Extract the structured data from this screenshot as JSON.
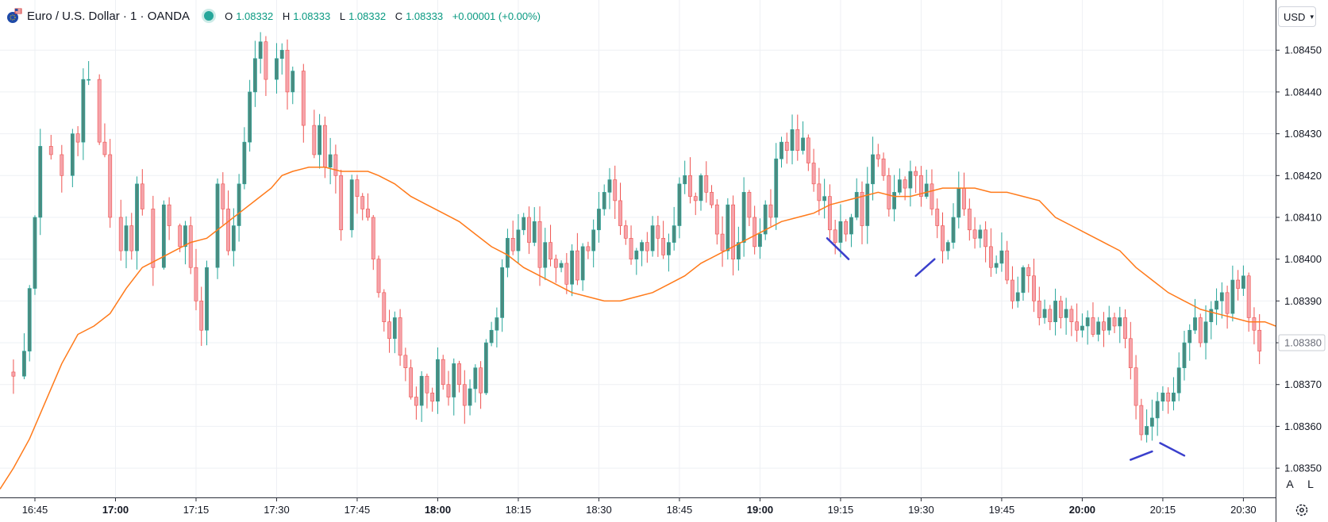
{
  "header": {
    "symbol": "Euro / U.S. Dollar · 1 · OANDA",
    "ohlc": {
      "o_label": "O",
      "o": "1.08332",
      "h_label": "H",
      "h": "1.08333",
      "l_label": "L",
      "l": "1.08332",
      "c_label": "C",
      "c": "1.08333",
      "change": "+0.00001 (+0.00%)"
    }
  },
  "controls": {
    "currency": "USD",
    "auto_label": "A",
    "log_label": "L"
  },
  "icons": {
    "logo": "euro-dollar-flags-icon",
    "status": "market-status-dot-icon",
    "settings": "gear-icon",
    "dropdown": "chevron-down-icon"
  },
  "colors": {
    "up": "#26a69a",
    "down": "#ef5350",
    "up_body": "#4a8b80",
    "down_body": "#f5a3aa",
    "ma": "#ff7a1a",
    "drawing": "#3a3fcc",
    "grid": "#eef0f4",
    "text": "#131722"
  },
  "chart_data": {
    "type": "candlestick",
    "interval": "1 minute",
    "ylim": [
      1.08343,
      1.08462
    ],
    "yticks": [
      "1.08350",
      "1.08360",
      "1.08370",
      "1.08380",
      "1.08390",
      "1.08400",
      "1.08410",
      "1.08420",
      "1.08430",
      "1.08440",
      "1.08450"
    ],
    "last_price_label": "1.08380",
    "xticks": [
      {
        "label": "16:45",
        "minute": 0,
        "bold": false
      },
      {
        "label": "17:00",
        "minute": 15,
        "bold": true
      },
      {
        "label": "17:15",
        "minute": 30,
        "bold": false
      },
      {
        "label": "17:30",
        "minute": 45,
        "bold": false
      },
      {
        "label": "17:45",
        "minute": 60,
        "bold": false
      },
      {
        "label": "18:00",
        "minute": 75,
        "bold": true
      },
      {
        "label": "18:15",
        "minute": 90,
        "bold": false
      },
      {
        "label": "18:30",
        "minute": 105,
        "bold": false
      },
      {
        "label": "18:45",
        "minute": 120,
        "bold": false
      },
      {
        "label": "19:00",
        "minute": 135,
        "bold": true
      },
      {
        "label": "19:15",
        "minute": 150,
        "bold": false
      },
      {
        "label": "19:30",
        "minute": 165,
        "bold": false
      },
      {
        "label": "19:45",
        "minute": 180,
        "bold": false
      },
      {
        "label": "20:00",
        "minute": 195,
        "bold": true
      },
      {
        "label": "20:15",
        "minute": 210,
        "bold": false
      },
      {
        "label": "20:30",
        "minute": 225,
        "bold": false
      }
    ],
    "xrange": [
      -6.5,
      231
    ],
    "anchors": [
      [
        -6,
        1.08373
      ],
      [
        -4,
        1.08372
      ],
      [
        -2,
        1.08378
      ],
      [
        -1,
        1.08393
      ],
      [
        0,
        1.0841
      ],
      [
        1,
        1.08427
      ],
      [
        3,
        1.08425
      ],
      [
        5,
        1.0842
      ],
      [
        7,
        1.0843
      ],
      [
        8,
        1.08428
      ],
      [
        9,
        1.08443
      ],
      [
        10,
        1.08443
      ],
      [
        12,
        1.08428
      ],
      [
        13,
        1.08425
      ],
      [
        14,
        1.0841
      ],
      [
        16,
        1.08402
      ],
      [
        17,
        1.08408
      ],
      [
        18,
        1.08402
      ],
      [
        19,
        1.08418
      ],
      [
        20,
        1.08412
      ],
      [
        22,
        1.08398
      ],
      [
        24,
        1.08413
      ],
      [
        25,
        1.08408
      ],
      [
        27,
        1.08403
      ],
      [
        28,
        1.08408
      ],
      [
        29,
        1.08398
      ],
      [
        30,
        1.0839
      ],
      [
        31,
        1.08383
      ],
      [
        32,
        1.08398
      ],
      [
        34,
        1.08418
      ],
      [
        35,
        1.08412
      ],
      [
        36,
        1.08402
      ],
      [
        37,
        1.08408
      ],
      [
        38,
        1.08418
      ],
      [
        39,
        1.08428
      ],
      [
        40,
        1.0844
      ],
      [
        41,
        1.08448
      ],
      [
        42,
        1.08452
      ],
      [
        43,
        1.08443
      ],
      [
        45,
        1.08448
      ],
      [
        46,
        1.0845
      ],
      [
        47,
        1.0844
      ],
      [
        48,
        1.08445
      ],
      [
        50,
        1.08432
      ],
      [
        52,
        1.08425
      ],
      [
        53,
        1.08432
      ],
      [
        54,
        1.08422
      ],
      [
        55,
        1.08425
      ],
      [
        56,
        1.0842
      ],
      [
        57,
        1.08407
      ],
      [
        59,
        1.08419
      ],
      [
        60,
        1.08415
      ],
      [
        61,
        1.08412
      ],
      [
        62,
        1.0841
      ],
      [
        63,
        1.084
      ],
      [
        64,
        1.08392
      ],
      [
        65,
        1.08385
      ],
      [
        66,
        1.08381
      ],
      [
        67,
        1.08386
      ],
      [
        68,
        1.08377
      ],
      [
        69,
        1.08374
      ],
      [
        70,
        1.08367
      ],
      [
        71,
        1.08365
      ],
      [
        72,
        1.08372
      ],
      [
        73,
        1.08368
      ],
      [
        74,
        1.08366
      ],
      [
        75,
        1.08376
      ],
      [
        76,
        1.0837
      ],
      [
        77,
        1.08367
      ],
      [
        78,
        1.08375
      ],
      [
        79,
        1.0837
      ],
      [
        80,
        1.08365
      ],
      [
        81,
        1.08369
      ],
      [
        82,
        1.08374
      ],
      [
        83,
        1.08368
      ],
      [
        84,
        1.0838
      ],
      [
        85,
        1.08383
      ],
      [
        86,
        1.08386
      ],
      [
        87,
        1.08398
      ],
      [
        88,
        1.08405
      ],
      [
        89,
        1.08402
      ],
      [
        90,
        1.08407
      ],
      [
        91,
        1.0841
      ],
      [
        92,
        1.08404
      ],
      [
        93,
        1.08409
      ],
      [
        94,
        1.08398
      ],
      [
        95,
        1.08404
      ],
      [
        96,
        1.084
      ],
      [
        97,
        1.08398
      ],
      [
        98,
        1.08399
      ],
      [
        99,
        1.08394
      ],
      [
        100,
        1.08402
      ],
      [
        101,
        1.08395
      ],
      [
        102,
        1.08403
      ],
      [
        103,
        1.08402
      ],
      [
        104,
        1.08407
      ],
      [
        105,
        1.08412
      ],
      [
        106,
        1.08416
      ],
      [
        107,
        1.08419
      ],
      [
        108,
        1.08414
      ],
      [
        109,
        1.08408
      ],
      [
        110,
        1.08405
      ],
      [
        111,
        1.084
      ],
      [
        112,
        1.08402
      ],
      [
        113,
        1.08404
      ],
      [
        114,
        1.08402
      ],
      [
        115,
        1.08408
      ],
      [
        116,
        1.08405
      ],
      [
        117,
        1.08401
      ],
      [
        118,
        1.08404
      ],
      [
        119,
        1.08408
      ],
      [
        120,
        1.08418
      ],
      [
        121,
        1.0842
      ],
      [
        122,
        1.08415
      ],
      [
        123,
        1.08414
      ],
      [
        124,
        1.0842
      ],
      [
        125,
        1.08416
      ],
      [
        126,
        1.08413
      ],
      [
        127,
        1.08406
      ],
      [
        128,
        1.08402
      ],
      [
        129,
        1.08413
      ],
      [
        130,
        1.084
      ],
      [
        131,
        1.08404
      ],
      [
        132,
        1.08416
      ],
      [
        133,
        1.0841
      ],
      [
        134,
        1.08403
      ],
      [
        135,
        1.08406
      ],
      [
        136,
        1.08413
      ],
      [
        137,
        1.0841
      ],
      [
        138,
        1.08424
      ],
      [
        139,
        1.08428
      ],
      [
        140,
        1.08426
      ],
      [
        141,
        1.08431
      ],
      [
        142,
        1.08426
      ],
      [
        143,
        1.08429
      ],
      [
        144,
        1.08423
      ],
      [
        145,
        1.08418
      ],
      [
        146,
        1.08414
      ],
      [
        147,
        1.08415
      ],
      [
        148,
        1.08407
      ],
      [
        149,
        1.08404
      ],
      [
        150,
        1.08409
      ],
      [
        151,
        1.08406
      ],
      [
        152,
        1.0841
      ],
      [
        153,
        1.08416
      ],
      [
        154,
        1.08408
      ],
      [
        155,
        1.08418
      ],
      [
        156,
        1.08425
      ],
      [
        157,
        1.08424
      ],
      [
        158,
        1.0842
      ],
      [
        159,
        1.08412
      ],
      [
        160,
        1.08416
      ],
      [
        161,
        1.08419
      ],
      [
        162,
        1.08417
      ],
      [
        163,
        1.08421
      ],
      [
        164,
        1.0842
      ],
      [
        165,
        1.08415
      ],
      [
        166,
        1.08418
      ],
      [
        167,
        1.08412
      ],
      [
        168,
        1.08408
      ],
      [
        169,
        1.08402
      ],
      [
        170,
        1.08404
      ],
      [
        171,
        1.0841
      ],
      [
        172,
        1.08417
      ],
      [
        173,
        1.08412
      ],
      [
        174,
        1.08407
      ],
      [
        175,
        1.08405
      ],
      [
        176,
        1.08407
      ],
      [
        177,
        1.08403
      ],
      [
        178,
        1.08398
      ],
      [
        179,
        1.08399
      ],
      [
        180,
        1.08402
      ],
      [
        181,
        1.08395
      ],
      [
        182,
        1.0839
      ],
      [
        183,
        1.08392
      ],
      [
        184,
        1.08398
      ],
      [
        185,
        1.08396
      ],
      [
        186,
        1.0839
      ],
      [
        187,
        1.08386
      ],
      [
        188,
        1.08388
      ],
      [
        189,
        1.08385
      ],
      [
        190,
        1.0839
      ],
      [
        191,
        1.08386
      ],
      [
        192,
        1.08388
      ],
      [
        193,
        1.08385
      ],
      [
        194,
        1.08383
      ],
      [
        195,
        1.08384
      ],
      [
        196,
        1.08386
      ],
      [
        197,
        1.08382
      ],
      [
        198,
        1.08385
      ],
      [
        199,
        1.08383
      ],
      [
        200,
        1.08386
      ],
      [
        201,
        1.08384
      ],
      [
        202,
        1.08386
      ],
      [
        203,
        1.08381
      ],
      [
        204,
        1.08374
      ],
      [
        205,
        1.08365
      ],
      [
        206,
        1.08358
      ],
      [
        207,
        1.0836
      ],
      [
        208,
        1.08362
      ],
      [
        209,
        1.08366
      ],
      [
        210,
        1.08368
      ],
      [
        211,
        1.08366
      ],
      [
        212,
        1.08368
      ],
      [
        213,
        1.08374
      ],
      [
        214,
        1.0838
      ],
      [
        215,
        1.08383
      ],
      [
        216,
        1.08386
      ],
      [
        217,
        1.0838
      ],
      [
        218,
        1.08385
      ],
      [
        219,
        1.08388
      ],
      [
        220,
        1.0839
      ],
      [
        221,
        1.08392
      ],
      [
        222,
        1.08387
      ],
      [
        223,
        1.08395
      ],
      [
        224,
        1.08393
      ],
      [
        225,
        1.08396
      ],
      [
        226,
        1.08386
      ],
      [
        227,
        1.08383
      ],
      [
        228,
        1.08378
      ]
    ],
    "moving_average": {
      "points": [
        [
          -6.5,
          1.08345
        ],
        [
          -4,
          1.0835
        ],
        [
          -1,
          1.08357
        ],
        [
          2,
          1.08366
        ],
        [
          5,
          1.08375
        ],
        [
          8,
          1.08382
        ],
        [
          11,
          1.08384
        ],
        [
          14,
          1.08387
        ],
        [
          17,
          1.08393
        ],
        [
          20,
          1.08398
        ],
        [
          23,
          1.084
        ],
        [
          26,
          1.08402
        ],
        [
          29,
          1.08404
        ],
        [
          32,
          1.08405
        ],
        [
          35,
          1.08408
        ],
        [
          38,
          1.08411
        ],
        [
          41,
          1.08414
        ],
        [
          44,
          1.08417
        ],
        [
          46,
          1.0842
        ],
        [
          48,
          1.08421
        ],
        [
          51,
          1.08422
        ],
        [
          54,
          1.08422
        ],
        [
          57,
          1.08421
        ],
        [
          60,
          1.08421
        ],
        [
          62,
          1.08421
        ],
        [
          64,
          1.0842
        ],
        [
          67,
          1.08418
        ],
        [
          70,
          1.08415
        ],
        [
          73,
          1.08413
        ],
        [
          76,
          1.08411
        ],
        [
          79,
          1.08409
        ],
        [
          82,
          1.08406
        ],
        [
          85,
          1.08403
        ],
        [
          88,
          1.08401
        ],
        [
          91,
          1.08398
        ],
        [
          94,
          1.08396
        ],
        [
          97,
          1.08394
        ],
        [
          100,
          1.08392
        ],
        [
          103,
          1.08391
        ],
        [
          106,
          1.0839
        ],
        [
          109,
          1.0839
        ],
        [
          112,
          1.08391
        ],
        [
          115,
          1.08392
        ],
        [
          118,
          1.08394
        ],
        [
          121,
          1.08396
        ],
        [
          124,
          1.08399
        ],
        [
          127,
          1.08401
        ],
        [
          130,
          1.08403
        ],
        [
          133,
          1.08405
        ],
        [
          136,
          1.08407
        ],
        [
          139,
          1.08409
        ],
        [
          142,
          1.0841
        ],
        [
          145,
          1.08411
        ],
        [
          148,
          1.08413
        ],
        [
          151,
          1.08414
        ],
        [
          154,
          1.08415
        ],
        [
          157,
          1.08416
        ],
        [
          160,
          1.08415
        ],
        [
          163,
          1.08415
        ],
        [
          166,
          1.08416
        ],
        [
          169,
          1.08417
        ],
        [
          172,
          1.08417
        ],
        [
          175,
          1.08417
        ],
        [
          178,
          1.08416
        ],
        [
          181,
          1.08416
        ],
        [
          184,
          1.08415
        ],
        [
          187,
          1.08414
        ],
        [
          190,
          1.0841
        ],
        [
          193,
          1.08408
        ],
        [
          196,
          1.08406
        ],
        [
          199,
          1.08404
        ],
        [
          202,
          1.08402
        ],
        [
          205,
          1.08398
        ],
        [
          208,
          1.08395
        ],
        [
          211,
          1.08392
        ],
        [
          214,
          1.0839
        ],
        [
          217,
          1.08388
        ],
        [
          220,
          1.08387
        ],
        [
          223,
          1.08386
        ],
        [
          226,
          1.08385
        ],
        [
          229,
          1.08385
        ],
        [
          231,
          1.08384
        ]
      ]
    },
    "drawings": [
      [
        [
          147.5,
          1.08405
        ],
        [
          151.5,
          1.084
        ]
      ],
      [
        [
          164,
          1.08396
        ],
        [
          167.5,
          1.084
        ]
      ],
      [
        [
          204,
          1.08352
        ],
        [
          208,
          1.08354
        ]
      ],
      [
        [
          209.5,
          1.08356
        ],
        [
          214,
          1.08353
        ]
      ]
    ]
  }
}
